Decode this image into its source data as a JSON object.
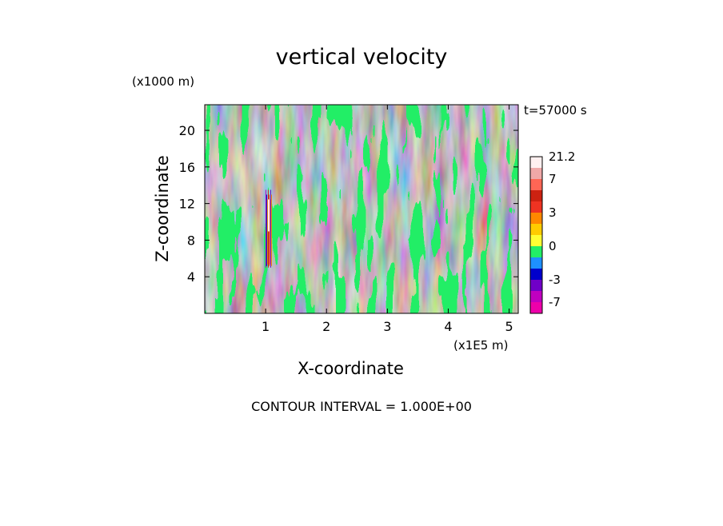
{
  "chart_data": {
    "type": "heatmap",
    "title": "vertical velocity",
    "variable": "vertical velocity",
    "xlabel": "X-coordinate",
    "ylabel": "Z-coordinate",
    "x_unit": "(x1E5 m)",
    "z_unit": "(x1000 m)",
    "time_label": "t=57000 s",
    "xlim": [
      0,
      5.15
    ],
    "ylim": [
      0,
      22.8
    ],
    "x_ticks": [
      1,
      2,
      3,
      4,
      5
    ],
    "y_ticks": [
      4,
      8,
      12,
      16,
      20
    ],
    "grid": false,
    "dominant_levels": [
      -1,
      0
    ],
    "updraft_core": {
      "x": 1.05,
      "z_min": 5,
      "z_max": 13.5,
      "max_value": 21.2
    },
    "colorbar": {
      "labels": [
        "21.2",
        "7",
        "3",
        "0",
        "-3",
        "-7"
      ],
      "label_values": [
        21.2,
        7,
        3,
        0,
        -3,
        -7
      ],
      "bins": [
        {
          "from": -12,
          "to": -7,
          "color": "#ee00aa"
        },
        {
          "from": -7,
          "to": -5,
          "color": "#c000c0"
        },
        {
          "from": -5,
          "to": -3,
          "color": "#7000c8"
        },
        {
          "from": -3,
          "to": -2,
          "color": "#0000cc"
        },
        {
          "from": -2,
          "to": -1,
          "color": "#1e90ff"
        },
        {
          "from": -1,
          "to": 0,
          "color": "#22ee66"
        },
        {
          "from": 0,
          "to": 1,
          "color": "#ffff33"
        },
        {
          "from": 1,
          "to": 2,
          "color": "#ffcc00"
        },
        {
          "from": 2,
          "to": 3,
          "color": "#ff8800"
        },
        {
          "from": 3,
          "to": 4,
          "color": "#ee3322"
        },
        {
          "from": 4,
          "to": 5,
          "color": "#cc2211"
        },
        {
          "from": 5,
          "to": 7,
          "color": "#ff6655"
        },
        {
          "from": 7,
          "to": 14,
          "color": "#f0a8a8"
        },
        {
          "from": 14,
          "to": 21.2,
          "color": "#fff0f0"
        }
      ]
    },
    "contour_interval_text": "CONTOUR INTERVAL = 1.000E+00"
  },
  "colors": {
    "negative_weak": "#22ee66",
    "positive_weak": "#ffff33",
    "axis": "#000000",
    "background": "#ffffff"
  }
}
